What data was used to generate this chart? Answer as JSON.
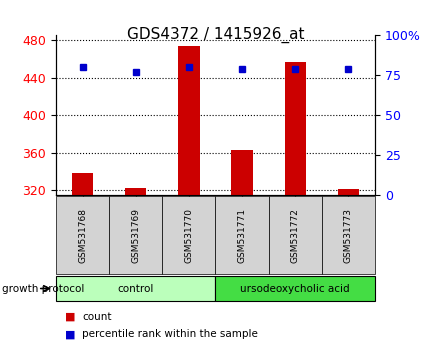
{
  "title": "GDS4372 / 1415926_at",
  "samples": [
    "GSM531768",
    "GSM531769",
    "GSM531770",
    "GSM531771",
    "GSM531772",
    "GSM531773"
  ],
  "counts": [
    338,
    322,
    474,
    363,
    457,
    321
  ],
  "percentile_ranks": [
    80,
    77,
    80,
    79,
    79,
    79
  ],
  "ylim_left": [
    315,
    485
  ],
  "yticks_left": [
    320,
    360,
    400,
    440,
    480
  ],
  "ylim_right": [
    0,
    100
  ],
  "yticks_right": [
    0,
    25,
    50,
    75,
    100
  ],
  "ytick_labels_right": [
    "0",
    "25",
    "50",
    "75",
    "100%"
  ],
  "groups": [
    {
      "label": "control",
      "samples": [
        0,
        1,
        2
      ],
      "color": "#bbffbb"
    },
    {
      "label": "ursodeoxycholic acid",
      "samples": [
        3,
        4,
        5
      ],
      "color": "#44dd44"
    }
  ],
  "bar_color": "#cc0000",
  "marker_color": "#0000cc",
  "bar_width": 0.4,
  "group_label": "growth protocol",
  "legend_count_label": "count",
  "legend_pct_label": "percentile rank within the sample",
  "title_fontsize": 11,
  "tick_fontsize": 9
}
